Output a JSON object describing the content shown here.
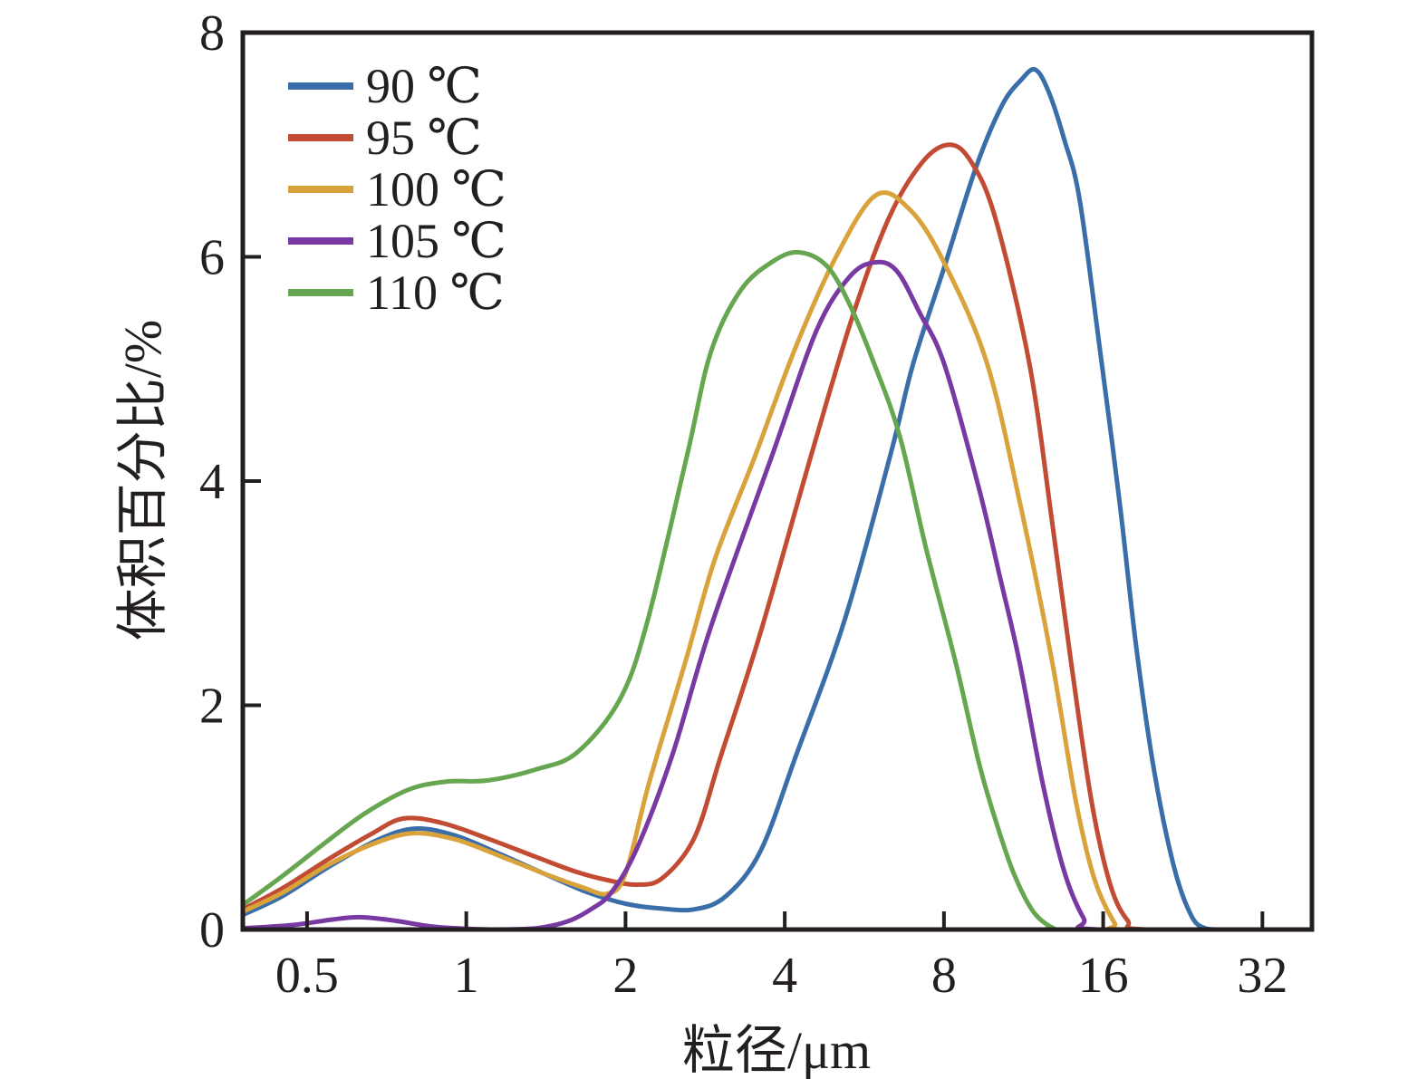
{
  "chart_data": {
    "type": "line",
    "title": "",
    "xlabel": "粒径/μm",
    "ylabel": "体积百分比/%",
    "x_scale": "log2",
    "x_range": [
      0.378,
      39.7
    ],
    "ylim": [
      0,
      8
    ],
    "x_ticks": [
      0.5,
      1,
      2,
      4,
      8,
      16,
      32
    ],
    "x_tick_labels": [
      "0.5",
      "1",
      "2",
      "4",
      "8",
      "16",
      "32"
    ],
    "y_ticks": [
      0,
      2,
      4,
      6,
      8
    ],
    "y_tick_labels": [
      "0",
      "2",
      "4",
      "6",
      "8"
    ],
    "grid": false,
    "legend_position": "top-left-inside",
    "fg_color": "#231F20",
    "bg_color": "#FFFFFF",
    "series": [
      {
        "id": "90c",
        "name": "90 ℃",
        "color": "#3A6EA9",
        "points": [
          [
            0.378,
            0.13
          ],
          [
            0.45,
            0.3
          ],
          [
            0.55,
            0.56
          ],
          [
            0.68,
            0.8
          ],
          [
            0.8,
            0.9
          ],
          [
            0.95,
            0.84
          ],
          [
            1.15,
            0.68
          ],
          [
            1.4,
            0.5
          ],
          [
            1.7,
            0.33
          ],
          [
            2.0,
            0.23
          ],
          [
            2.3,
            0.19
          ],
          [
            2.7,
            0.18
          ],
          [
            3.1,
            0.3
          ],
          [
            3.6,
            0.7
          ],
          [
            4.2,
            1.55
          ],
          [
            5.2,
            2.77
          ],
          [
            6.35,
            4.25
          ],
          [
            7.0,
            5.05
          ],
          [
            8.0,
            5.9
          ],
          [
            9.2,
            6.8
          ],
          [
            10.3,
            7.35
          ],
          [
            11.2,
            7.58
          ],
          [
            11.9,
            7.67
          ],
          [
            12.6,
            7.48
          ],
          [
            13.5,
            7.05
          ],
          [
            14.45,
            6.5
          ],
          [
            15.9,
            5.05
          ],
          [
            17.2,
            3.8
          ],
          [
            18.5,
            2.5
          ],
          [
            20.0,
            1.4
          ],
          [
            21.8,
            0.55
          ],
          [
            23.5,
            0.12
          ],
          [
            25.0,
            0.01
          ],
          [
            27.0,
            0.0
          ],
          [
            39.7,
            0.0
          ]
        ]
      },
      {
        "id": "95c",
        "name": "95 ℃",
        "color": "#C24B33",
        "points": [
          [
            0.378,
            0.18
          ],
          [
            0.45,
            0.37
          ],
          [
            0.55,
            0.63
          ],
          [
            0.66,
            0.85
          ],
          [
            0.76,
            0.99
          ],
          [
            0.9,
            0.95
          ],
          [
            1.1,
            0.81
          ],
          [
            1.35,
            0.65
          ],
          [
            1.6,
            0.52
          ],
          [
            1.85,
            0.44
          ],
          [
            2.1,
            0.4
          ],
          [
            2.35,
            0.46
          ],
          [
            2.7,
            0.82
          ],
          [
            3.03,
            1.55
          ],
          [
            3.6,
            2.65
          ],
          [
            4.5,
            4.25
          ],
          [
            5.4,
            5.5
          ],
          [
            6.3,
            6.35
          ],
          [
            7.3,
            6.85
          ],
          [
            8.2,
            7.0
          ],
          [
            9.0,
            6.85
          ],
          [
            10.0,
            6.35
          ],
          [
            11.6,
            5.05
          ],
          [
            12.8,
            3.65
          ],
          [
            13.9,
            2.4
          ],
          [
            15.2,
            1.15
          ],
          [
            16.5,
            0.4
          ],
          [
            17.8,
            0.08
          ],
          [
            19.2,
            0.0
          ],
          [
            39.7,
            0.0
          ]
        ]
      },
      {
        "id": "100c",
        "name": "100 ℃",
        "color": "#D9A23B",
        "points": [
          [
            0.378,
            0.16
          ],
          [
            0.45,
            0.33
          ],
          [
            0.55,
            0.58
          ],
          [
            0.68,
            0.78
          ],
          [
            0.8,
            0.86
          ],
          [
            0.96,
            0.8
          ],
          [
            1.18,
            0.64
          ],
          [
            1.42,
            0.49
          ],
          [
            1.65,
            0.38
          ],
          [
            1.85,
            0.32
          ],
          [
            2.0,
            0.5
          ],
          [
            2.22,
            1.32
          ],
          [
            2.6,
            2.4
          ],
          [
            2.95,
            3.3
          ],
          [
            3.5,
            4.2
          ],
          [
            4.2,
            5.2
          ],
          [
            5.0,
            6.0
          ],
          [
            5.95,
            6.55
          ],
          [
            6.9,
            6.42
          ],
          [
            8.0,
            5.95
          ],
          [
            9.65,
            5.05
          ],
          [
            11.2,
            3.75
          ],
          [
            12.8,
            2.4
          ],
          [
            14.2,
            1.15
          ],
          [
            15.4,
            0.45
          ],
          [
            16.8,
            0.06
          ],
          [
            17.6,
            0.0
          ],
          [
            39.7,
            0.0
          ]
        ]
      },
      {
        "id": "105c",
        "name": "105 ℃",
        "color": "#7839A2",
        "points": [
          [
            0.378,
            0.01
          ],
          [
            0.47,
            0.04
          ],
          [
            0.56,
            0.09
          ],
          [
            0.63,
            0.11
          ],
          [
            0.73,
            0.08
          ],
          [
            0.85,
            0.03
          ],
          [
            0.97,
            0.01
          ],
          [
            1.15,
            0.0
          ],
          [
            1.35,
            0.01
          ],
          [
            1.55,
            0.07
          ],
          [
            1.72,
            0.18
          ],
          [
            1.88,
            0.33
          ],
          [
            2.1,
            0.72
          ],
          [
            2.45,
            1.55
          ],
          [
            2.9,
            2.7
          ],
          [
            3.8,
            4.25
          ],
          [
            4.6,
            5.35
          ],
          [
            5.3,
            5.82
          ],
          [
            5.9,
            5.95
          ],
          [
            6.5,
            5.88
          ],
          [
            7.2,
            5.5
          ],
          [
            8.0,
            5.05
          ],
          [
            9.3,
            3.95
          ],
          [
            10.2,
            3.15
          ],
          [
            11.1,
            2.4
          ],
          [
            12.3,
            1.3
          ],
          [
            13.5,
            0.52
          ],
          [
            14.7,
            0.1
          ],
          [
            15.6,
            0.0
          ],
          [
            39.7,
            0.0
          ]
        ]
      },
      {
        "id": "110c",
        "name": "110 ℃",
        "color": "#67A650",
        "points": [
          [
            0.378,
            0.22
          ],
          [
            0.45,
            0.48
          ],
          [
            0.55,
            0.8
          ],
          [
            0.65,
            1.05
          ],
          [
            0.78,
            1.25
          ],
          [
            0.92,
            1.32
          ],
          [
            1.1,
            1.33
          ],
          [
            1.36,
            1.43
          ],
          [
            1.62,
            1.58
          ],
          [
            1.95,
            2.05
          ],
          [
            2.2,
            2.75
          ],
          [
            2.62,
            4.25
          ],
          [
            2.9,
            5.15
          ],
          [
            3.3,
            5.7
          ],
          [
            3.8,
            5.96
          ],
          [
            4.26,
            6.04
          ],
          [
            4.8,
            5.92
          ],
          [
            5.3,
            5.58
          ],
          [
            5.9,
            5.05
          ],
          [
            6.6,
            4.4
          ],
          [
            7.4,
            3.4
          ],
          [
            8.4,
            2.4
          ],
          [
            9.3,
            1.5
          ],
          [
            9.9,
            1.05
          ],
          [
            10.8,
            0.52
          ],
          [
            11.8,
            0.16
          ],
          [
            12.9,
            0.01
          ],
          [
            13.6,
            0.0
          ],
          [
            39.7,
            0.0
          ]
        ]
      }
    ]
  }
}
